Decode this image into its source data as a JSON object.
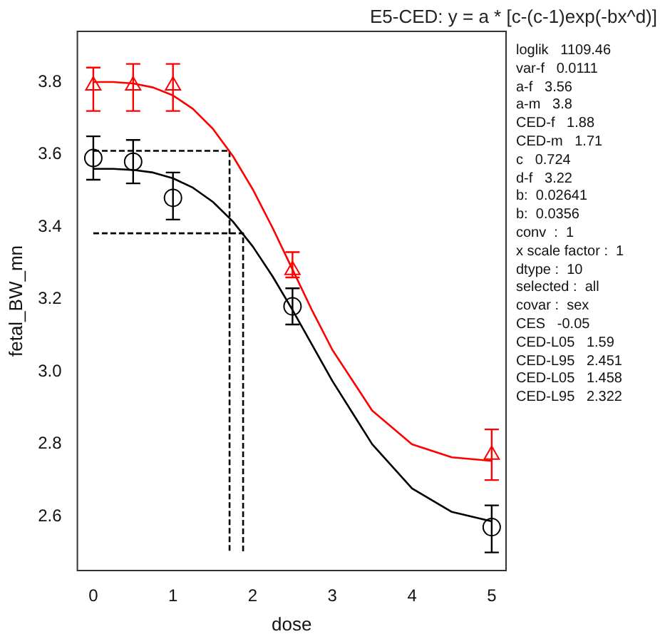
{
  "chart_data": {
    "type": "scatter",
    "title": "E5-CED: y = a * [c-(c-1)exp(-bx^d)]",
    "xlabel": "dose",
    "ylabel": "fetal_BW_mn",
    "x": [
      0,
      0.5,
      1,
      2.5,
      5
    ],
    "series": [
      {
        "type": "line",
        "color": "#ff0000",
        "marker": "none",
        "line_style": "solid",
        "x": [
          0,
          0.25,
          0.5,
          0.75,
          1,
          1.25,
          1.5,
          1.75,
          2,
          2.25,
          2.5,
          2.75,
          3,
          3.5,
          4,
          4.5,
          5
        ],
        "values": [
          3.8,
          3.8,
          3.796,
          3.785,
          3.763,
          3.726,
          3.671,
          3.596,
          3.504,
          3.397,
          3.282,
          3.167,
          3.06,
          2.892,
          2.799,
          2.763,
          2.753
        ]
      },
      {
        "type": "line",
        "color": "#000000",
        "marker": "none",
        "line_style": "solid",
        "x": [
          0,
          0.25,
          0.5,
          0.75,
          1,
          1.25,
          1.5,
          1.75,
          2,
          2.25,
          2.5,
          2.75,
          3,
          3.5,
          4,
          4.5,
          5
        ],
        "values": [
          3.56,
          3.56,
          3.557,
          3.55,
          3.534,
          3.508,
          3.469,
          3.415,
          3.346,
          3.263,
          3.17,
          3.072,
          2.974,
          2.799,
          2.677,
          2.612,
          2.586
        ]
      },
      {
        "type": "line",
        "color": "#000000",
        "marker": "none",
        "line_style": "dashed",
        "x": [
          0,
          1.71,
          1.71
        ],
        "values": [
          3.61,
          3.61,
          2.5
        ]
      },
      {
        "type": "line",
        "color": "#000000",
        "marker": "none",
        "line_style": "dashed",
        "x": [
          0,
          1.88,
          1.88
        ],
        "values": [
          3.382,
          3.382,
          2.5
        ]
      },
      {
        "color": "#ff0000",
        "marker": "triangle",
        "values": [
          3.79,
          3.79,
          3.79,
          3.28,
          2.77
        ],
        "errors": [
          [
            3.72,
            3.84
          ],
          [
            3.72,
            3.85
          ],
          [
            3.72,
            3.85
          ],
          [
            3.26,
            3.33
          ],
          [
            2.7,
            2.84
          ]
        ]
      },
      {
        "color": "#000000",
        "marker": "circle",
        "values": [
          3.59,
          3.58,
          3.48,
          3.18,
          2.57
        ],
        "errors": [
          [
            3.53,
            3.65
          ],
          [
            3.52,
            3.64
          ],
          [
            3.42,
            3.55
          ],
          [
            3.13,
            3.23
          ],
          [
            2.5,
            2.63
          ]
        ]
      }
    ],
    "xlim": [
      -0.2,
      5.18
    ],
    "xticks": [
      0,
      1,
      2,
      3,
      4,
      5
    ],
    "ylim": [
      2.45,
      3.94
    ],
    "yticks": [
      2.6,
      2.8,
      {
        "value": 3,
        "label": "3.0"
      },
      3.2,
      3.4,
      3.6,
      3.8
    ],
    "grid": false,
    "legend": false,
    "annotations": [
      "loglik   1109.46",
      "var-f   0.0111",
      "a-f   3.56",
      "a-m   3.8",
      "CED-f   1.88",
      "CED-m   1.71",
      "c   0.724",
      "d-f   3.22",
      "b:  0.02641",
      "b:  0.0356",
      "conv  :  1",
      "x scale factor :  1",
      "dtype :  10",
      "selected :  all",
      "covar :  sex",
      "CES   -0.05",
      "CED-L05   1.59",
      "CED-L95   2.451",
      "CED-L05   1.458",
      "CED-L95   2.322"
    ]
  }
}
